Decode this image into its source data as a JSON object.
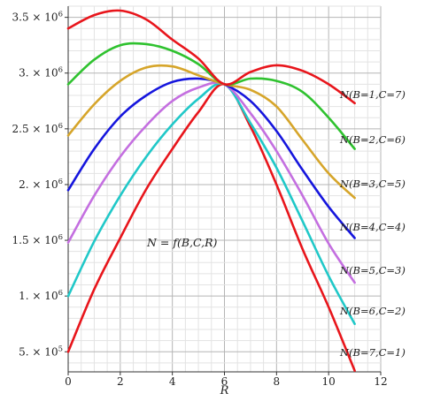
{
  "chart_data": {
    "type": "line",
    "xlabel": "R",
    "ylabel": "",
    "xlim": [
      0,
      12
    ],
    "ylim": [
      320000,
      3600000
    ],
    "grid": true,
    "x_ticks": [
      {
        "value": 0,
        "label": "0"
      },
      {
        "value": 2,
        "label": "2"
      },
      {
        "value": 4,
        "label": "4"
      },
      {
        "value": 6,
        "label": "6"
      },
      {
        "value": 8,
        "label": "8"
      },
      {
        "value": 10,
        "label": "10"
      },
      {
        "value": 12,
        "label": "12"
      }
    ],
    "y_ticks": [
      {
        "value": 500000,
        "mantissa": "5.",
        "base": "10",
        "exp": "5"
      },
      {
        "value": 1000000,
        "mantissa": "1.",
        "base": "10",
        "exp": "6"
      },
      {
        "value": 1500000,
        "mantissa": "1.5",
        "base": "10",
        "exp": "6"
      },
      {
        "value": 2000000,
        "mantissa": "2.",
        "base": "10",
        "exp": "6"
      },
      {
        "value": 2500000,
        "mantissa": "2.5",
        "base": "10",
        "exp": "6"
      },
      {
        "value": 3000000,
        "mantissa": "3.",
        "base": "10",
        "exp": "6"
      },
      {
        "value": 3500000,
        "mantissa": "3.5",
        "base": "10",
        "exp": "6"
      }
    ],
    "annotation": "N = f(B,C,R)",
    "curve_x": [
      0,
      1,
      2,
      3,
      4,
      5,
      6,
      7,
      8,
      9,
      10,
      11
    ],
    "series": [
      {
        "name": "N(B=1,C=7)",
        "color": "#e8151b",
        "values": [
          3400000,
          3520000,
          3560000,
          3480000,
          3300000,
          3130000,
          2900000,
          3010000,
          3070000,
          3020000,
          2900000,
          2730000
        ]
      },
      {
        "name": "N(B=2,C=6)",
        "color": "#2fc22f",
        "values": [
          2900000,
          3120000,
          3250000,
          3260000,
          3200000,
          3080000,
          2900000,
          2950000,
          2930000,
          2830000,
          2600000,
          2320000
        ]
      },
      {
        "name": "N(B=3,C=5)",
        "color": "#d6a52a",
        "values": [
          2440000,
          2720000,
          2930000,
          3050000,
          3060000,
          2980000,
          2900000,
          2850000,
          2700000,
          2400000,
          2100000,
          1880000
        ]
      },
      {
        "name": "N(B=4,C=4)",
        "color": "#1515dd",
        "values": [
          1950000,
          2320000,
          2610000,
          2800000,
          2920000,
          2950000,
          2900000,
          2750000,
          2480000,
          2130000,
          1800000,
          1520000
        ]
      },
      {
        "name": "N(B=5,C=3)",
        "color": "#c46fe0",
        "values": [
          1480000,
          1900000,
          2250000,
          2530000,
          2750000,
          2870000,
          2900000,
          2640000,
          2300000,
          1900000,
          1470000,
          1120000
        ]
      },
      {
        "name": "N(B=6,C=2)",
        "color": "#20c8c8",
        "values": [
          1000000,
          1490000,
          1900000,
          2250000,
          2540000,
          2770000,
          2900000,
          2550000,
          2150000,
          1670000,
          1180000,
          750000
        ]
      },
      {
        "name": "N(B=7,C=1)",
        "color": "#e8151b",
        "values": [
          500000,
          1060000,
          1520000,
          1960000,
          2320000,
          2650000,
          2900000,
          2520000,
          2000000,
          1420000,
          900000,
          330000
        ]
      }
    ]
  }
}
